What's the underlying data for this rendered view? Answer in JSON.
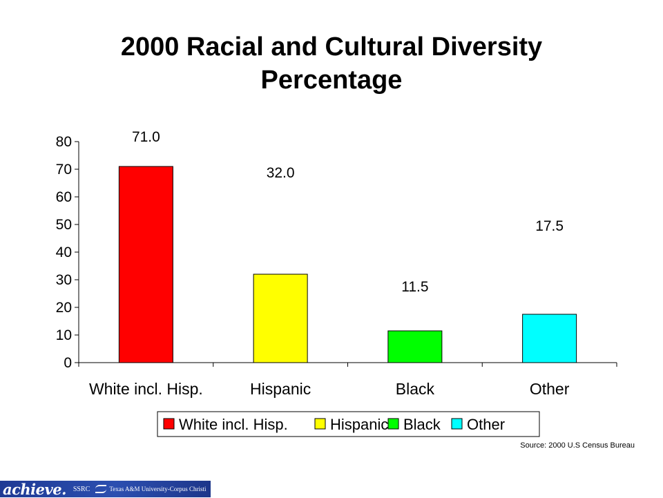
{
  "chart_data": {
    "type": "bar",
    "title_line1": "2000 Racial and Cultural Diversity",
    "title_line2": "Percentage",
    "categories": [
      "White incl. Hisp.",
      "Hispanic",
      "Black",
      "Other"
    ],
    "values": [
      71.0,
      32.0,
      11.5,
      17.5
    ],
    "data_labels": [
      "71.0",
      "32.0",
      "11.5",
      "17.5"
    ],
    "colors": [
      "#ff0000",
      "#ffff00",
      "#00ff00",
      "#00ffff"
    ],
    "ylim": [
      0,
      80
    ],
    "yticks": [
      0,
      10,
      20,
      30,
      40,
      50,
      60,
      70,
      80
    ],
    "xlabel": "",
    "ylabel": "",
    "grid": false,
    "legend": {
      "placement": "bottom",
      "entries": [
        "White incl. Hisp.",
        "Hispanic",
        "Black",
        "Other"
      ]
    }
  },
  "source_note": "Source: 2000 U.S Census Bureau",
  "footer": {
    "logo_text": "achieve.",
    "ssrc_text": "SSRC",
    "university_text": "Texas A&M University-Corpus Christi"
  }
}
